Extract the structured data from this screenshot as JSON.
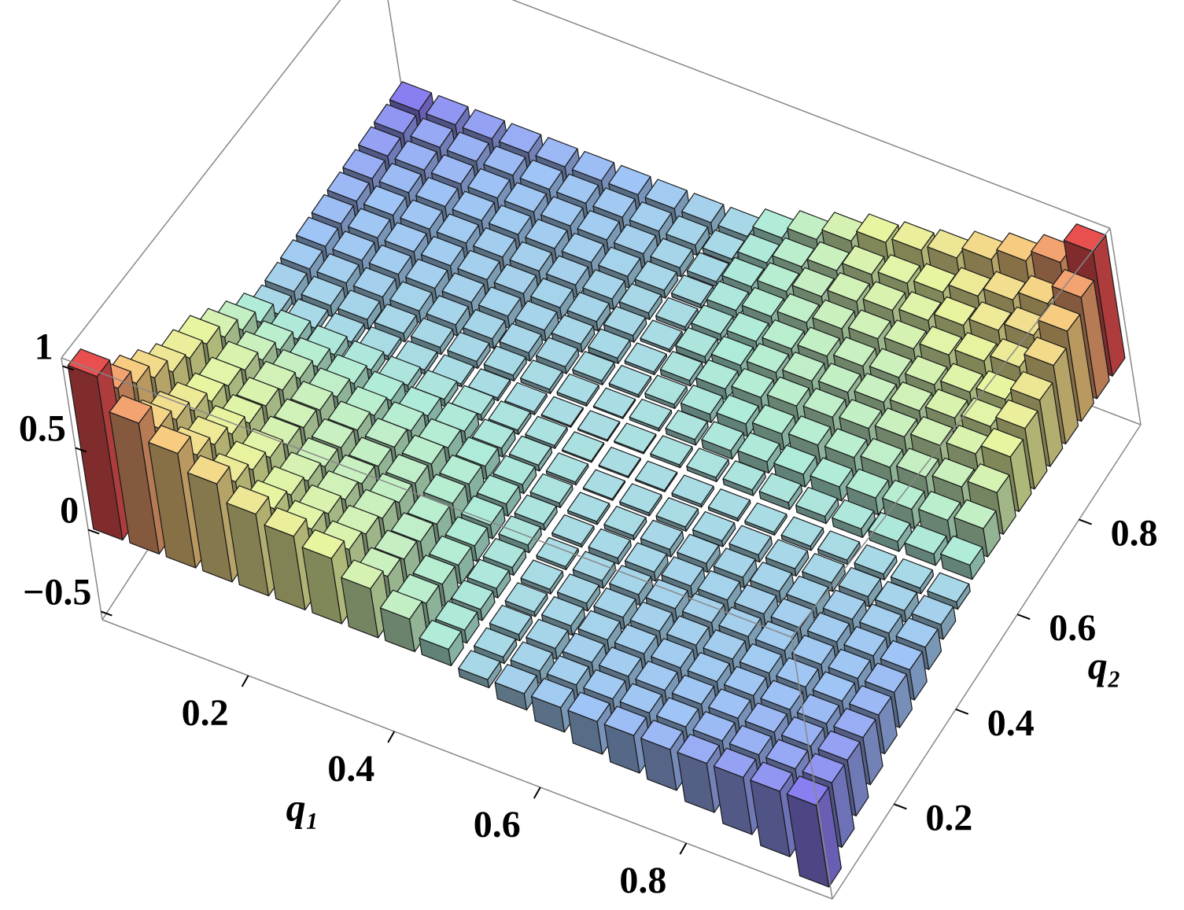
{
  "chart_data": {
    "type": "bar3d",
    "xlabel": "q₁",
    "ylabel": "q₂",
    "xlim": [
      0,
      1
    ],
    "ylim": [
      0,
      1
    ],
    "zlim": [
      -0.55,
      1.05
    ],
    "xticks": [
      0.2,
      0.4,
      0.6,
      0.8
    ],
    "yticks": [
      0.2,
      0.4,
      0.6,
      0.8
    ],
    "zticks": [
      {
        "value": -0.5,
        "label": "−0.5"
      },
      0,
      0.5,
      1
    ],
    "colorscale": [
      "#8a7ff0",
      "#9fc4f6",
      "#b0ecd8",
      "#e8f5a0",
      "#f8cc80",
      "#e85050"
    ],
    "values": [
      [
        1,
        0.8,
        0.7,
        0.6,
        0.5,
        0.45,
        0.4,
        0.3,
        0.2,
        0.1,
        -0.05,
        -0.1,
        -0.15,
        -0.2,
        -0.23,
        -0.25,
        -0.3,
        -0.35,
        -0.4,
        -0.5
      ],
      [
        0.8,
        0.64,
        0.56,
        0.48,
        0.4,
        0.36,
        0.32,
        0.24,
        0.16,
        0.08,
        -0.04,
        -0.08,
        -0.12,
        -0.16,
        -0.18,
        -0.2,
        -0.24,
        -0.28,
        -0.32,
        -0.4
      ],
      [
        0.7,
        0.56,
        0.49,
        0.42,
        0.35,
        0.32,
        0.28,
        0.21,
        0.14,
        0.07,
        -0.04,
        -0.07,
        -0.11,
        -0.14,
        -0.16,
        -0.18,
        -0.21,
        -0.25,
        -0.28,
        -0.35
      ],
      [
        0.6,
        0.48,
        0.42,
        0.36,
        0.3,
        0.27,
        0.24,
        0.18,
        0.12,
        0.06,
        -0.03,
        -0.06,
        -0.09,
        -0.12,
        -0.14,
        -0.15,
        -0.18,
        -0.21,
        -0.24,
        -0.3
      ],
      [
        0.5,
        0.4,
        0.35,
        0.3,
        0.25,
        0.23,
        0.2,
        0.15,
        0.1,
        0.05,
        -0.03,
        -0.05,
        -0.08,
        -0.1,
        -0.11,
        -0.13,
        -0.15,
        -0.18,
        -0.2,
        -0.25
      ],
      [
        0.45,
        0.36,
        0.32,
        0.27,
        0.23,
        0.2,
        0.18,
        0.14,
        0.09,
        0.05,
        -0.02,
        -0.05,
        -0.07,
        -0.09,
        -0.1,
        -0.11,
        -0.14,
        -0.16,
        -0.18,
        -0.23
      ],
      [
        0.4,
        0.32,
        0.28,
        0.24,
        0.2,
        0.18,
        0.16,
        0.12,
        0.08,
        0.04,
        -0.02,
        -0.04,
        -0.06,
        -0.08,
        -0.09,
        -0.1,
        -0.12,
        -0.14,
        -0.16,
        -0.2
      ],
      [
        0.3,
        0.24,
        0.21,
        0.18,
        0.15,
        0.14,
        0.12,
        0.09,
        0.06,
        0.03,
        -0.02,
        -0.03,
        -0.05,
        -0.06,
        -0.07,
        -0.08,
        -0.09,
        -0.11,
        -0.12,
        -0.15
      ],
      [
        0.2,
        0.16,
        0.14,
        0.12,
        0.1,
        0.09,
        0.08,
        0.06,
        0.04,
        0.02,
        -0.01,
        -0.02,
        -0.03,
        -0.04,
        -0.05,
        -0.05,
        -0.06,
        -0.07,
        -0.08,
        -0.1
      ],
      [
        0.1,
        0.08,
        0.07,
        0.06,
        0.05,
        0.05,
        0.04,
        0.03,
        0.02,
        0.01,
        -0.01,
        -0.01,
        -0.02,
        -0.02,
        -0.02,
        -0.03,
        -0.03,
        -0.04,
        -0.04,
        -0.05
      ],
      [
        -0.05,
        -0.04,
        -0.04,
        -0.03,
        -0.03,
        -0.02,
        -0.02,
        -0.02,
        -0.01,
        -0.01,
        0.01,
        0.02,
        0.03,
        0.04,
        0.05,
        0.05,
        0.06,
        0.07,
        0.08,
        0.1
      ],
      [
        -0.1,
        -0.08,
        -0.07,
        -0.06,
        -0.05,
        -0.05,
        -0.04,
        -0.03,
        -0.02,
        -0.01,
        0.02,
        0.04,
        0.06,
        0.08,
        0.09,
        0.1,
        0.12,
        0.14,
        0.16,
        0.2
      ],
      [
        -0.15,
        -0.12,
        -0.11,
        -0.09,
        -0.08,
        -0.07,
        -0.06,
        -0.05,
        -0.03,
        -0.02,
        0.03,
        0.06,
        0.09,
        0.12,
        0.14,
        0.15,
        0.18,
        0.21,
        0.24,
        0.3
      ],
      [
        -0.2,
        -0.16,
        -0.14,
        -0.12,
        -0.1,
        -0.09,
        -0.08,
        -0.06,
        -0.04,
        -0.02,
        0.04,
        0.08,
        0.12,
        0.16,
        0.18,
        0.2,
        0.24,
        0.28,
        0.32,
        0.4
      ],
      [
        -0.23,
        -0.18,
        -0.16,
        -0.14,
        -0.11,
        -0.1,
        -0.09,
        -0.07,
        -0.05,
        -0.02,
        0.05,
        0.09,
        0.14,
        0.18,
        0.2,
        0.23,
        0.27,
        0.32,
        0.36,
        0.45
      ],
      [
        -0.25,
        -0.2,
        -0.18,
        -0.15,
        -0.13,
        -0.11,
        -0.1,
        -0.08,
        -0.05,
        -0.03,
        0.05,
        0.1,
        0.15,
        0.2,
        0.23,
        0.25,
        0.3,
        0.35,
        0.4,
        0.5
      ],
      [
        -0.3,
        -0.24,
        -0.21,
        -0.18,
        -0.15,
        -0.14,
        -0.12,
        -0.09,
        -0.06,
        -0.03,
        0.06,
        0.12,
        0.18,
        0.24,
        0.27,
        0.3,
        0.36,
        0.42,
        0.48,
        0.6
      ],
      [
        -0.35,
        -0.28,
        -0.25,
        -0.21,
        -0.18,
        -0.16,
        -0.14,
        -0.11,
        -0.07,
        -0.04,
        0.07,
        0.14,
        0.21,
        0.28,
        0.32,
        0.35,
        0.42,
        0.49,
        0.56,
        0.7
      ],
      [
        -0.4,
        -0.32,
        -0.28,
        -0.24,
        -0.2,
        -0.18,
        -0.16,
        -0.12,
        -0.08,
        -0.04,
        0.08,
        0.16,
        0.24,
        0.32,
        0.36,
        0.4,
        0.48,
        0.56,
        0.64,
        0.8
      ],
      [
        -0.5,
        -0.4,
        -0.35,
        -0.3,
        -0.25,
        -0.23,
        -0.2,
        -0.15,
        -0.1,
        -0.05,
        0.1,
        0.2,
        0.3,
        0.4,
        0.45,
        0.5,
        0.6,
        0.7,
        0.8,
        1
      ]
    ]
  }
}
